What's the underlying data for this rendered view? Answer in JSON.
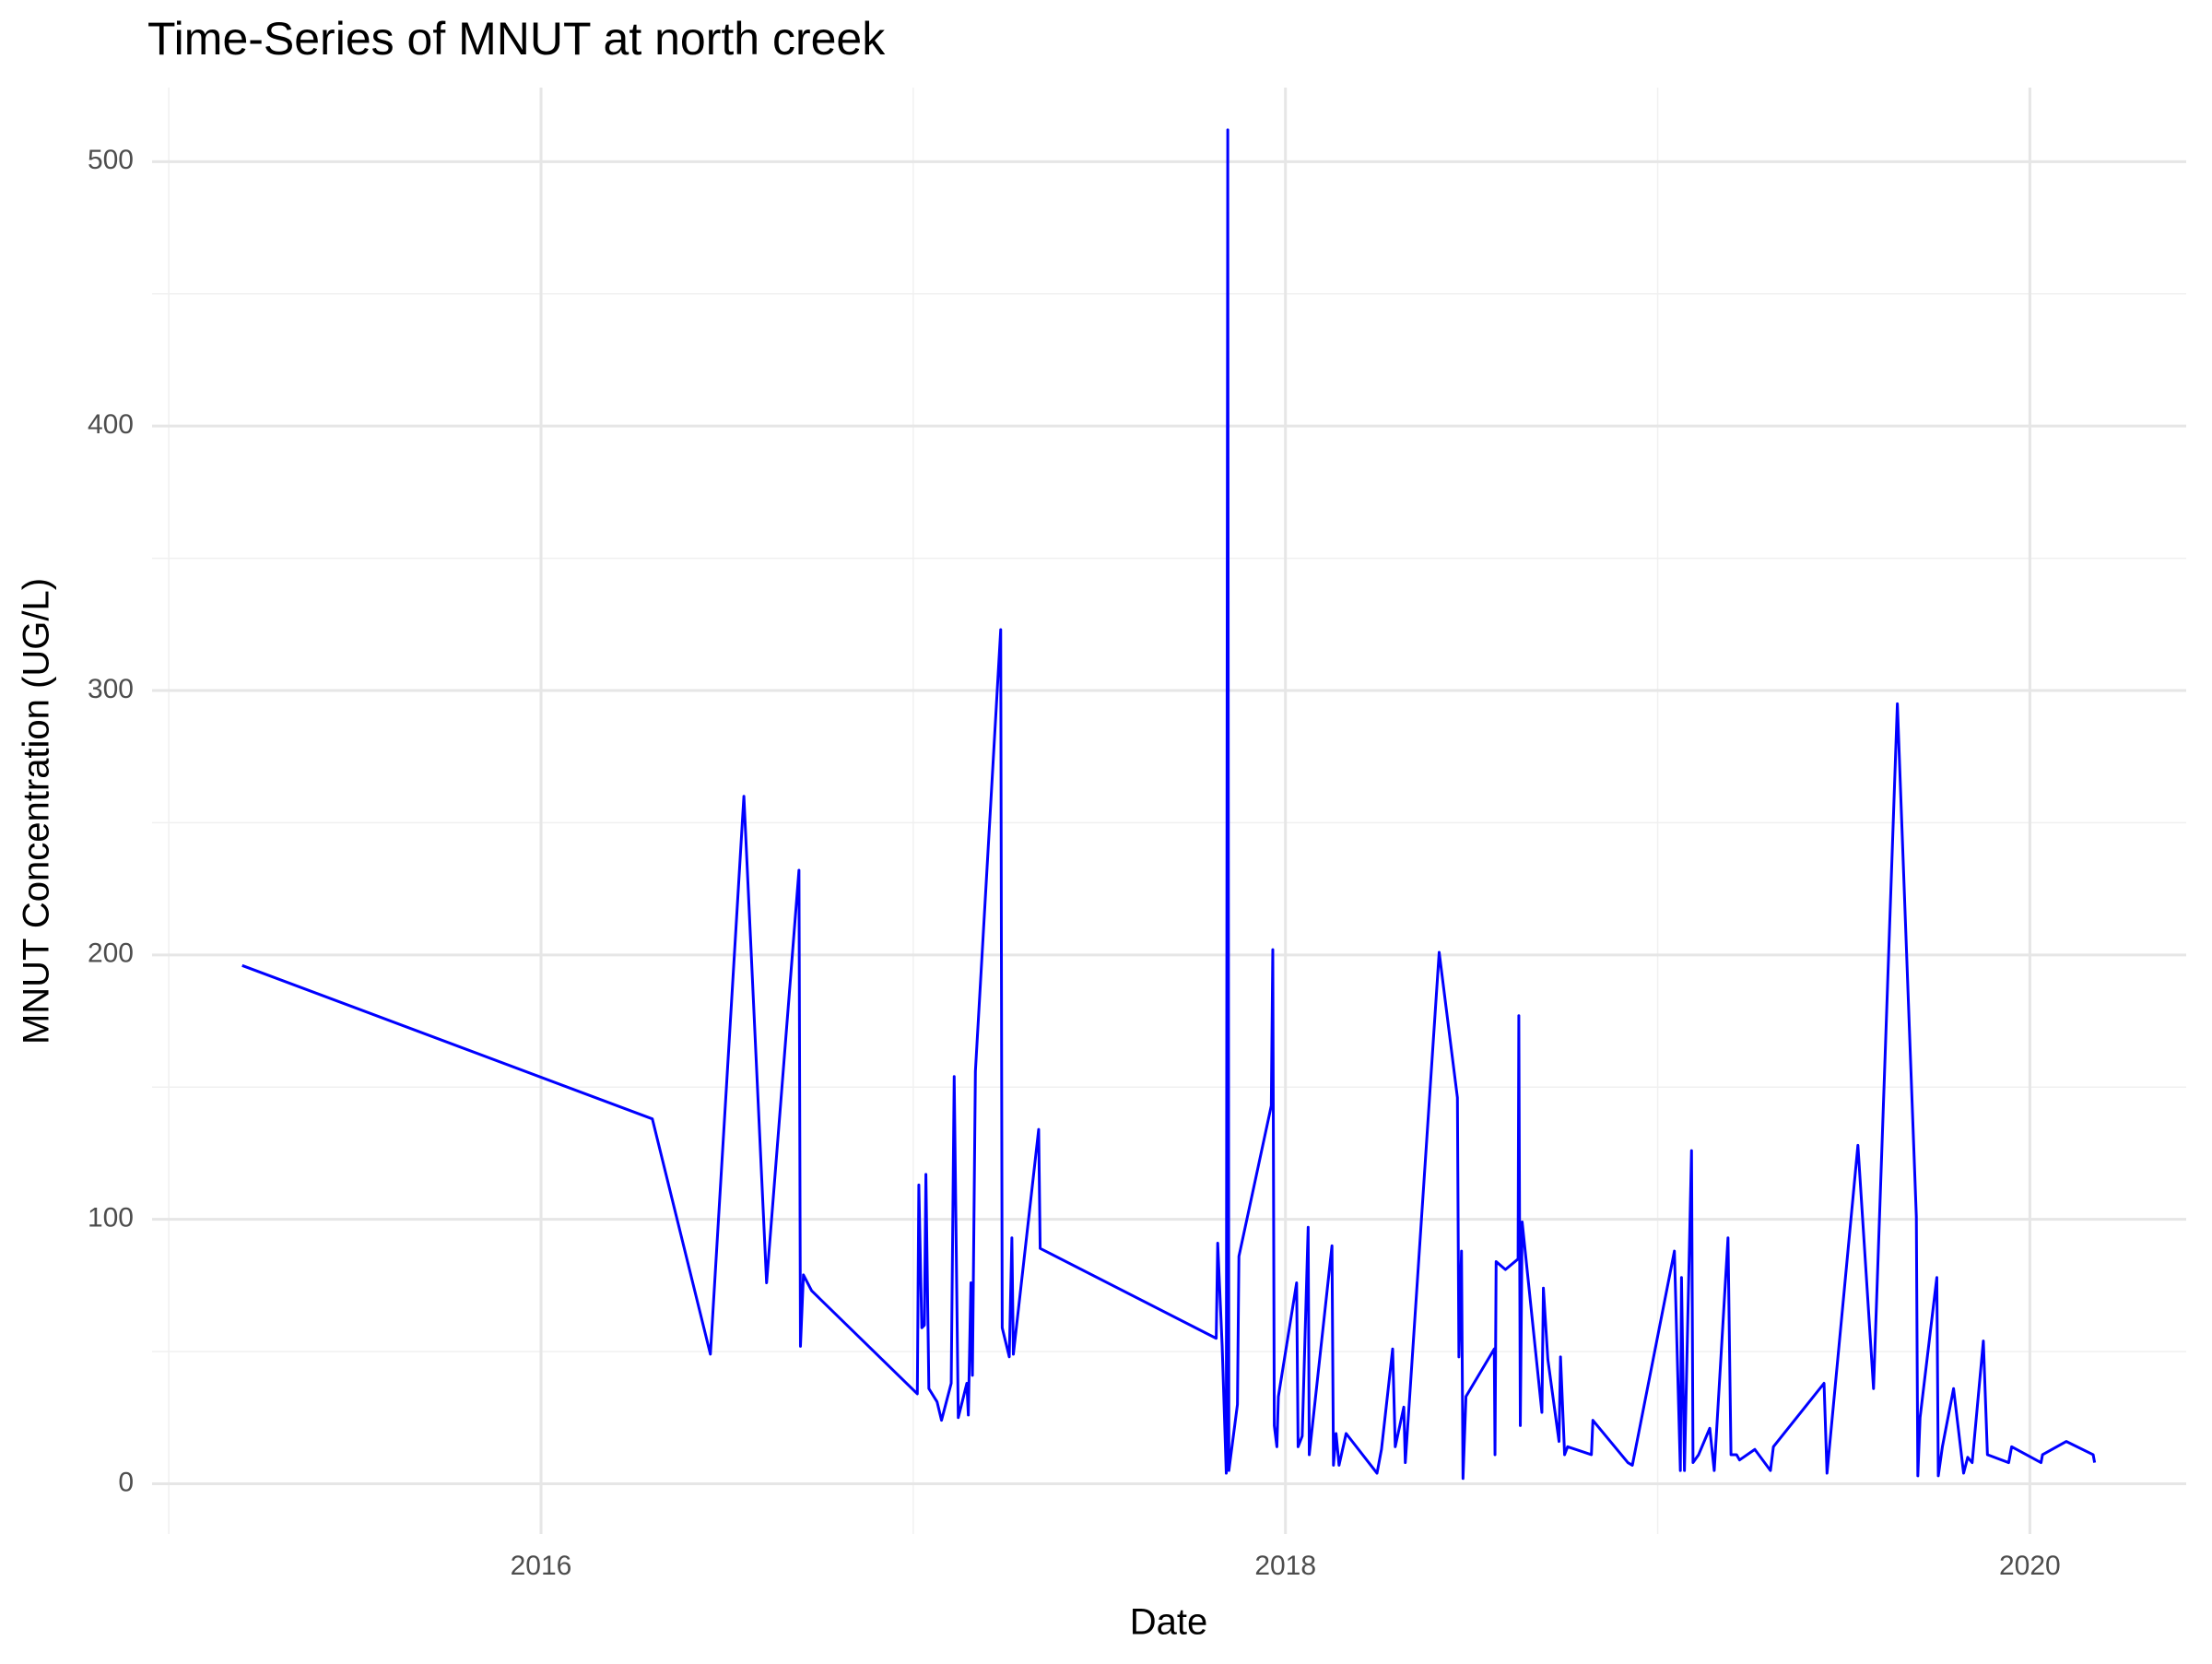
{
  "chart_data": {
    "type": "line",
    "title": "Time-Series of MNUT at north creek",
    "x_label": "Date",
    "y_label": "MNUT Concentration (UG/L)",
    "color": "#0000ff",
    "grid": true,
    "xlim": [
      2014.955,
      2020.42
    ],
    "ylim": [
      -19,
      528
    ],
    "xticks": [
      2016,
      2018,
      2020
    ],
    "yticks": [
      0,
      100,
      200,
      300,
      400,
      500
    ],
    "x_minor_ticks": [
      2015,
      2017,
      2019
    ],
    "y_minor_ticks": [
      50,
      150,
      250,
      350,
      450
    ],
    "x": [
      2015.197,
      2016.299,
      2016.455,
      2016.545,
      2016.606,
      2016.693,
      2016.697,
      2016.705,
      2016.727,
      2017.011,
      2017.015,
      2017.023,
      2017.03,
      2017.034,
      2017.042,
      2017.064,
      2017.076,
      2017.102,
      2017.11,
      2017.121,
      2017.144,
      2017.148,
      2017.155,
      2017.159,
      2017.167,
      2017.235,
      2017.239,
      2017.258,
      2017.265,
      2017.269,
      2017.337,
      2017.341,
      2017.814,
      2017.818,
      2017.83,
      2017.841,
      2017.845,
      2017.848,
      2017.871,
      2017.875,
      2017.962,
      2017.966,
      2017.97,
      2017.977,
      2017.981,
      2018.03,
      2018.034,
      2018.045,
      2018.061,
      2018.064,
      2018.125,
      2018.129,
      2018.136,
      2018.144,
      2018.163,
      2018.246,
      2018.258,
      2018.288,
      2018.295,
      2018.318,
      2018.322,
      2018.413,
      2018.462,
      2018.466,
      2018.473,
      2018.477,
      2018.485,
      2018.561,
      2018.563,
      2018.566,
      2018.591,
      2018.625,
      2018.627,
      2018.631,
      2018.636,
      2018.689,
      2018.693,
      2018.705,
      2018.735,
      2018.739,
      2018.75,
      2018.758,
      2018.822,
      2018.826,
      2018.92,
      2018.932,
      2019.045,
      2019.061,
      2019.064,
      2019.072,
      2019.091,
      2019.095,
      2019.11,
      2019.14,
      2019.152,
      2019.189,
      2019.197,
      2019.212,
      2019.22,
      2019.261,
      2019.303,
      2019.311,
      2019.447,
      2019.455,
      2019.538,
      2019.58,
      2019.644,
      2019.695,
      2019.699,
      2019.705,
      2019.75,
      2019.754,
      2019.765,
      2019.795,
      2019.822,
      2019.833,
      2019.845,
      2019.875,
      2019.886,
      2019.943,
      2019.951,
      2020.03,
      2020.034,
      2020.098,
      2020.17,
      2020.174
    ],
    "values": [
      196,
      138,
      49,
      260,
      76,
      232,
      52,
      79,
      73,
      34,
      113,
      59,
      60,
      117,
      36,
      31,
      24,
      38,
      154,
      25,
      38,
      26,
      76,
      41,
      156,
      323,
      59,
      48,
      93,
      49,
      134,
      89,
      55,
      91,
      52,
      4,
      512,
      5,
      30,
      86,
      143,
      202,
      22,
      14,
      33,
      76,
      14,
      18,
      97,
      11,
      90,
      7,
      19,
      7,
      19,
      4,
      13,
      51,
      14,
      29,
      8,
      201,
      146,
      48,
      88,
      2,
      33,
      51,
      11,
      84,
      81,
      85,
      177,
      22,
      99,
      27,
      74,
      47,
      16,
      48,
      11,
      14,
      11,
      24,
      8,
      7,
      88,
      5,
      78,
      5,
      126,
      8,
      11,
      21,
      5,
      93,
      11,
      11,
      9,
      13,
      5,
      14,
      38,
      4,
      128,
      36,
      295,
      101,
      3,
      25,
      78,
      3,
      14,
      36,
      4,
      10,
      8,
      54,
      11,
      8,
      14,
      8,
      11,
      16,
      11,
      8
    ]
  }
}
